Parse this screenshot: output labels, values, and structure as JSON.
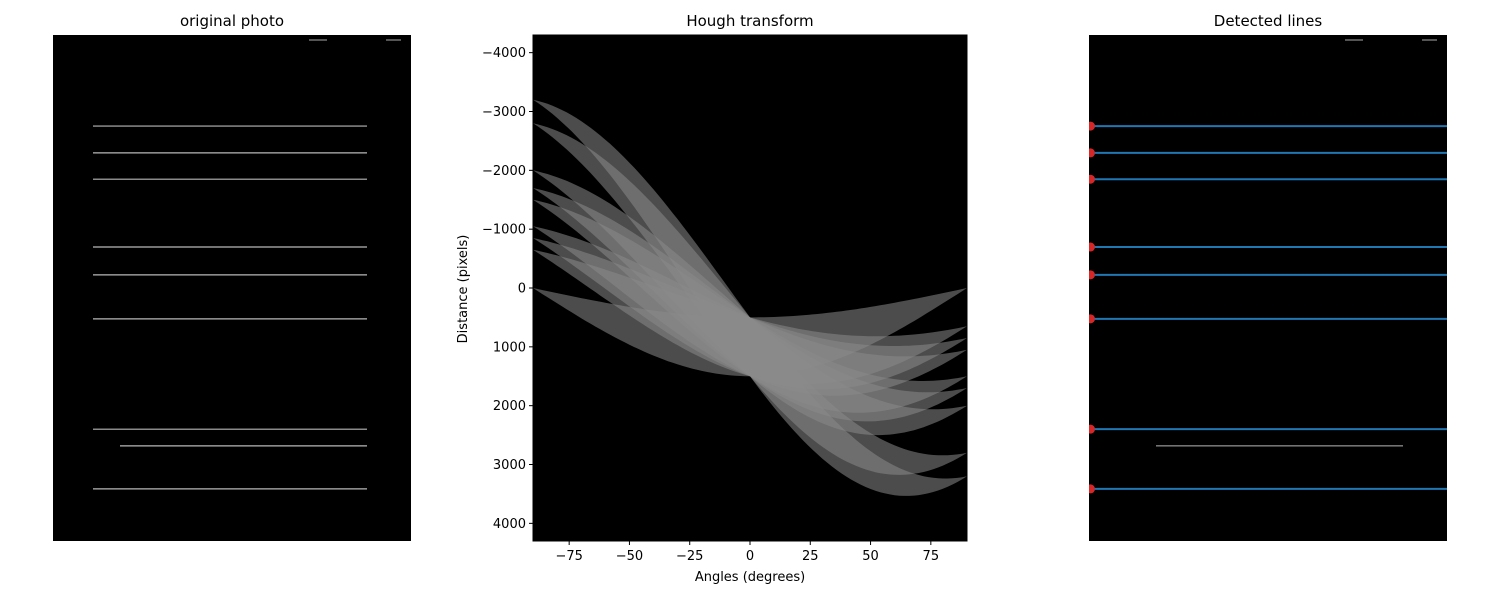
{
  "panels": {
    "left": {
      "title": "original photo"
    },
    "middle": {
      "title": "Hough transform"
    },
    "right": {
      "title": "Detected lines"
    }
  },
  "chart_data": [
    {
      "type": "image",
      "title": "original photo",
      "lines_y_fraction_of_height": [
        0.18,
        0.233,
        0.285,
        0.419,
        0.474,
        0.561,
        0.779,
        0.812,
        0.897
      ]
    },
    {
      "type": "heatmap",
      "title": "Hough transform",
      "xlabel": "Angles (degrees)",
      "ylabel": "Distance (pixels)",
      "xlim": [
        -90,
        90
      ],
      "ylim": [
        4300,
        -4300
      ],
      "x_ticks": [
        -75,
        -50,
        -25,
        0,
        25,
        50,
        75
      ],
      "y_ticks": [
        -4000,
        -3000,
        -2000,
        -1000,
        0,
        1000,
        2000,
        3000,
        4000
      ],
      "note_colormap": "gray",
      "sinusoids": [
        {
          "peak_rho": -3200,
          "end_rho": 3200
        },
        {
          "peak_rho": -2800,
          "end_rho": 2800
        },
        {
          "peak_rho": -2000,
          "end_rho": 2000
        },
        {
          "peak_rho": -1700,
          "end_rho": 1700
        },
        {
          "peak_rho": -1500,
          "end_rho": 1500
        },
        {
          "peak_rho": -1000,
          "end_rho": 1100
        },
        {
          "peak_rho": -800,
          "end_rho": 900
        },
        {
          "peak_rho": -600,
          "end_rho": 700
        },
        {
          "peak_rho": 0,
          "end_rho": 0
        }
      ]
    },
    {
      "type": "image",
      "title": "Detected lines",
      "detected_lines_y_fraction": [
        0.18,
        0.233,
        0.285,
        0.419,
        0.474,
        0.561,
        0.779,
        0.897
      ],
      "undetected_line_y_fraction": 0.812
    }
  ],
  "colors": {
    "line_blue": "#1f77b4",
    "marker_red": "#d62728",
    "image_bg": "#000000",
    "photo_line": "#b8b8b8"
  }
}
